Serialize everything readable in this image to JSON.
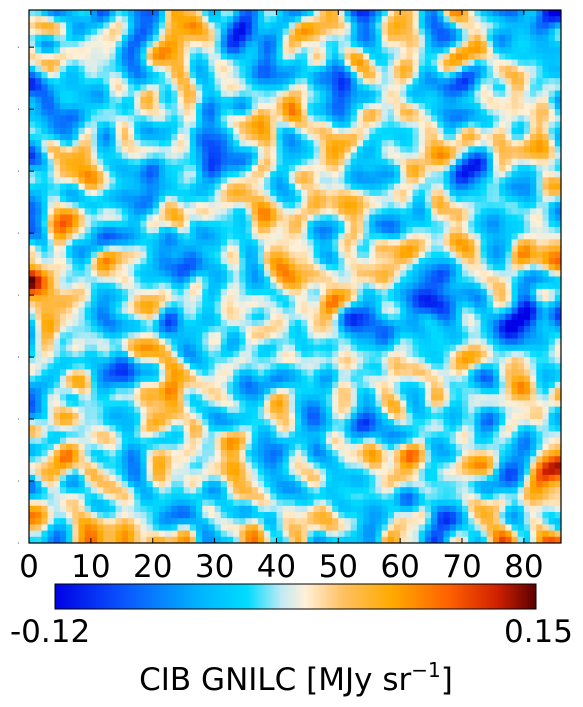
{
  "chart_data": {
    "type": "heatmap",
    "title": "",
    "xlabel": "",
    "ylabel": "",
    "grid": false,
    "xlim": [
      0,
      86
    ],
    "ylim": [
      0,
      86
    ],
    "x_ticks": [
      0,
      10,
      20,
      30,
      40,
      50,
      60,
      70,
      80
    ],
    "x_tick_labels": [
      "0",
      "10",
      "20",
      "30",
      "40",
      "50",
      "60",
      "70",
      "80"
    ],
    "y_tick_labels": [],
    "pixels_per_side": 86,
    "colormap": [
      "#0000e6",
      "#0a5aff",
      "#00b4ff",
      "#00dcff",
      "#bfeaf5",
      "#fff0d8",
      "#ffc060",
      "#ffaa00",
      "#ff6000",
      "#d02000",
      "#5a0000"
    ],
    "value_range": [
      -0.12,
      0.15
    ],
    "colorbar": {
      "orientation": "horizontal",
      "min_label": "-0.12",
      "max_label": "0.15",
      "label_main": "CIB GNILC [MJy sr",
      "label_sup": "−1",
      "label_end": "]"
    }
  }
}
